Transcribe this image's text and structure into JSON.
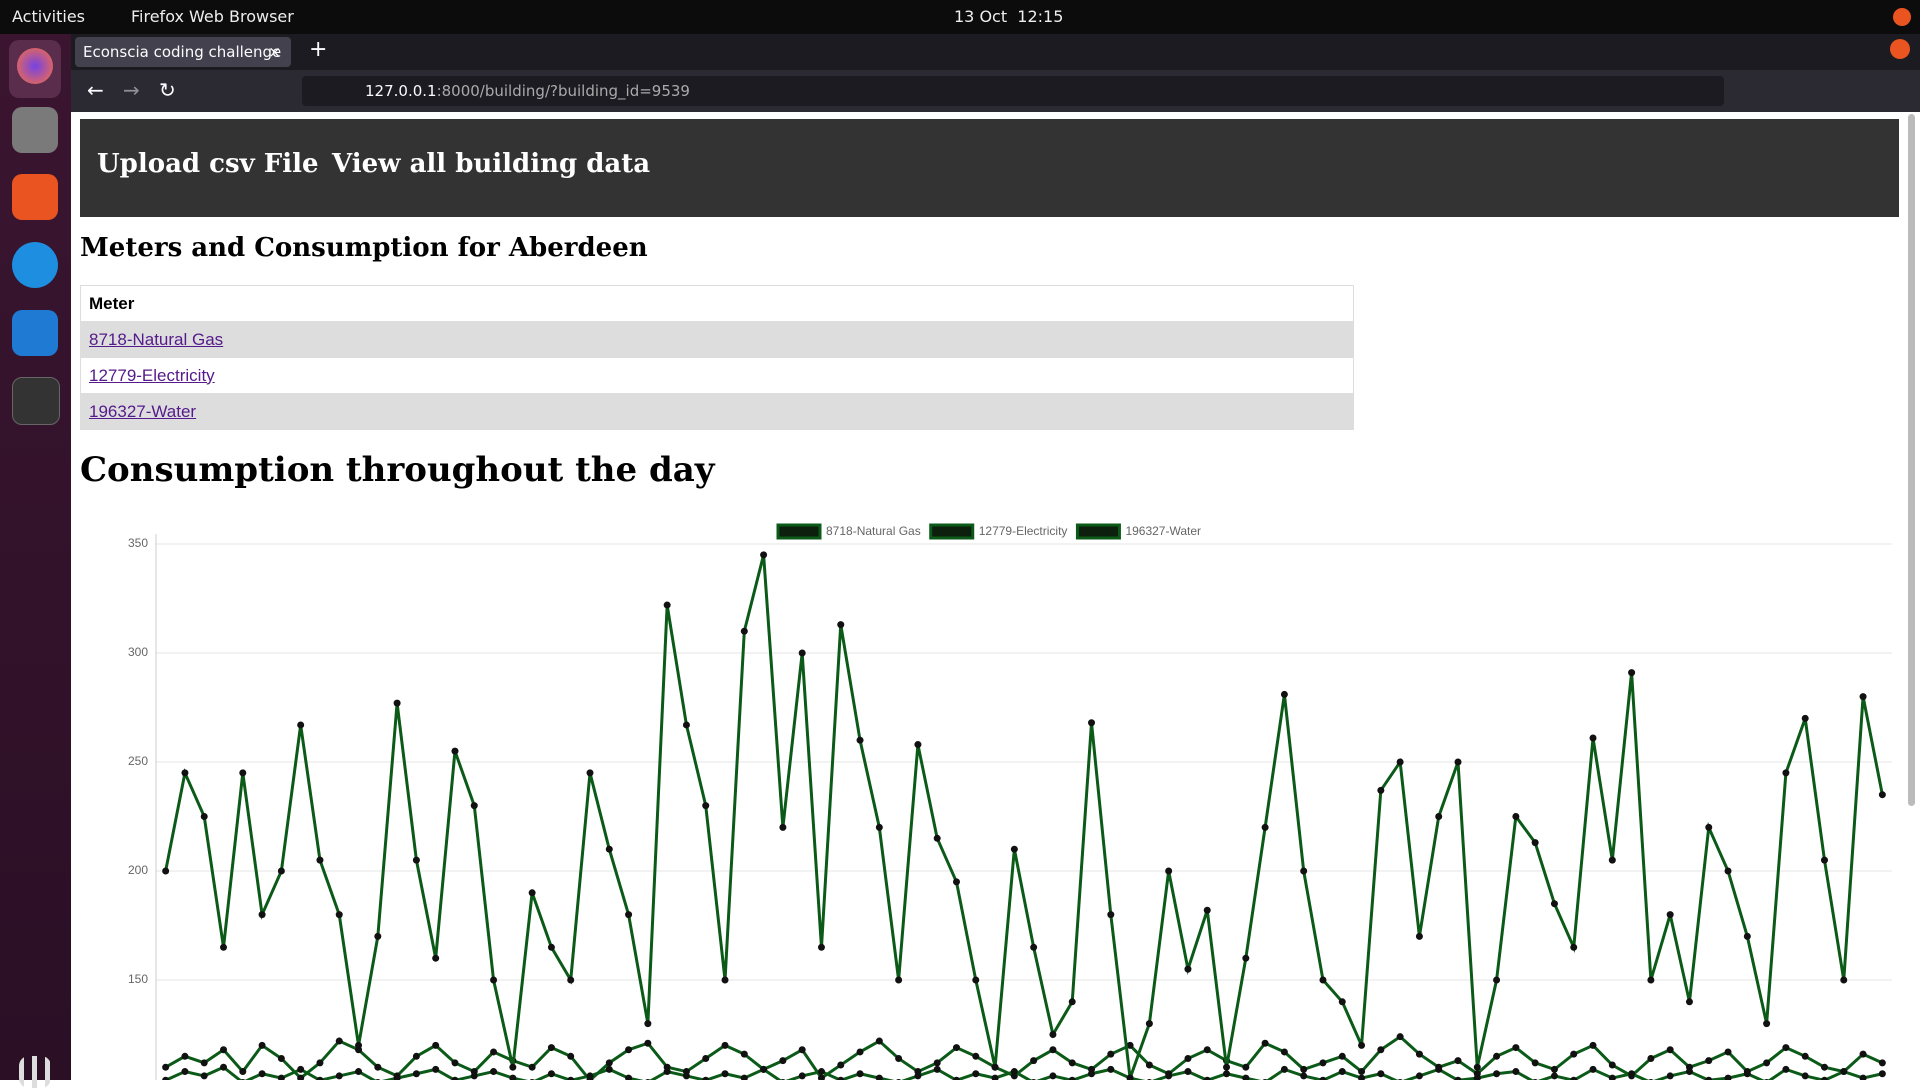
{
  "system_bar": {
    "activities": "Activities",
    "app": "Firefox Web Browser",
    "clock": "13 Oct  12:15"
  },
  "browser": {
    "tab": "Econscia coding challenge",
    "url_host": "127.0.0.1",
    "url_path": ":8000/building/?building_id=9539"
  },
  "nav": {
    "links": [
      "Upload csv File",
      "View all building data"
    ]
  },
  "heading": "Meters and Consumption for Aberdeen",
  "table": {
    "header": "Meter",
    "rows": [
      "8718-Natural Gas",
      "12779-Electricity",
      "196327-Water"
    ]
  },
  "chart_data": {
    "type": "line",
    "title": "Consumption throughout the day",
    "series": [
      {
        "name": "8718-Natural Gas",
        "color": "#0b5a18",
        "values": [
          110,
          115,
          112,
          118,
          108,
          120,
          114,
          105,
          112,
          122,
          118,
          110,
          106,
          115,
          120,
          112,
          108,
          117,
          113,
          110,
          119,
          115,
          104,
          112,
          118,
          121,
          110,
          108,
          114,
          120,
          116,
          109,
          113,
          118,
          105,
          111,
          117,
          122,
          114,
          108,
          112,
          119,
          115,
          110,
          106,
          113,
          118,
          112,
          109,
          116,
          120,
          111,
          107,
          114,
          118,
          113,
          110,
          121,
          117,
          109,
          112,
          115,
          108,
          118,
          124,
          116,
          110,
          113,
          107,
          115,
          119,
          112,
          109,
          116,
          120,
          111,
          106,
          114,
          118,
          110,
          113,
          117,
          108,
          112,
          119,
          115,
          110,
          108,
          116,
          112
        ]
      },
      {
        "name": "12779-Electricity",
        "color": "#0b5a18",
        "values": [
          200,
          245,
          225,
          165,
          245,
          180,
          200,
          267,
          205,
          180,
          120,
          170,
          277,
          205,
          160,
          255,
          230,
          150,
          110,
          190,
          165,
          150,
          245,
          210,
          180,
          130,
          322,
          267,
          230,
          150,
          310,
          345,
          220,
          300,
          165,
          313,
          260,
          220,
          150,
          258,
          215,
          195,
          150,
          110,
          210,
          165,
          125,
          140,
          268,
          180,
          105,
          130,
          200,
          155,
          182,
          110,
          160,
          220,
          281,
          200,
          150,
          140,
          120,
          237,
          250,
          170,
          225,
          250,
          110,
          150,
          225,
          213,
          185,
          165,
          261,
          205,
          291,
          150,
          180,
          140,
          220,
          200,
          170,
          130,
          245,
          270,
          205,
          150,
          280,
          235
        ]
      },
      {
        "name": "196327-Water",
        "color": "#0b5a18",
        "values": [
          104,
          108,
          106,
          110,
          103,
          107,
          105,
          109,
          104,
          106,
          108,
          103,
          105,
          107,
          109,
          104,
          106,
          108,
          105,
          103,
          107,
          104,
          106,
          109,
          105,
          103,
          108,
          106,
          104,
          107,
          105,
          109,
          103,
          106,
          108,
          104,
          107,
          105,
          103,
          106,
          109,
          104,
          107,
          105,
          108,
          103,
          106,
          104,
          107,
          109,
          105,
          103,
          106,
          108,
          104,
          107,
          105,
          103,
          109,
          106,
          104,
          108,
          105,
          107,
          103,
          106,
          109,
          104,
          105,
          107,
          108,
          103,
          106,
          104,
          109,
          105,
          107,
          103,
          106,
          108,
          104,
          105,
          107,
          103,
          109,
          106,
          104,
          108,
          105,
          107
        ]
      }
    ],
    "ylim": [
      100,
      350
    ],
    "yticks": [
      150,
      200,
      250,
      300,
      350
    ],
    "grid": true
  }
}
